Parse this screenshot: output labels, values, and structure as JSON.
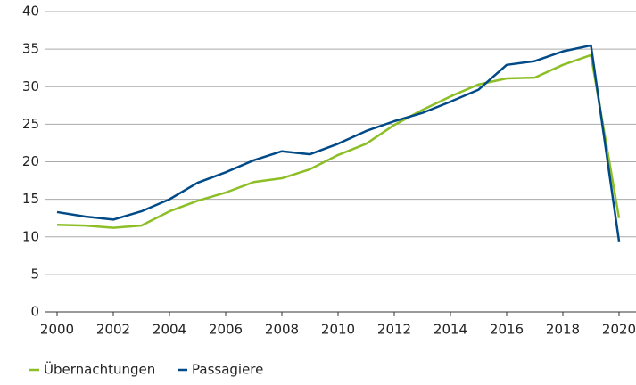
{
  "chart_data": {
    "type": "line",
    "x": [
      2000,
      2001,
      2002,
      2003,
      2004,
      2005,
      2006,
      2007,
      2008,
      2009,
      2010,
      2011,
      2012,
      2013,
      2014,
      2015,
      2016,
      2017,
      2018,
      2019,
      2020
    ],
    "series": [
      {
        "name": "Übernachtungen",
        "color": "#8cbf26",
        "values": [
          11.6,
          11.5,
          11.2,
          11.5,
          13.4,
          14.8,
          15.9,
          17.3,
          17.8,
          19.0,
          20.9,
          22.4,
          24.9,
          26.9,
          28.7,
          30.3,
          31.1,
          31.2,
          32.9,
          34.2,
          12.5
        ]
      },
      {
        "name": "Passagiere",
        "color": "#004a87",
        "values": [
          13.3,
          12.7,
          12.3,
          13.4,
          15.0,
          17.2,
          18.6,
          20.2,
          21.4,
          21.0,
          22.4,
          24.1,
          25.4,
          26.5,
          28.0,
          29.6,
          32.9,
          33.4,
          34.7,
          35.5,
          9.4
        ]
      }
    ],
    "xlim": [
      2000,
      2020
    ],
    "xticks": [
      2000,
      2002,
      2004,
      2006,
      2008,
      2010,
      2012,
      2014,
      2016,
      2018,
      2020
    ],
    "ylim": [
      0,
      40
    ],
    "yticks": [
      0,
      5,
      10,
      15,
      20,
      25,
      30,
      35,
      40
    ],
    "grid": true,
    "legend": "bottom"
  }
}
